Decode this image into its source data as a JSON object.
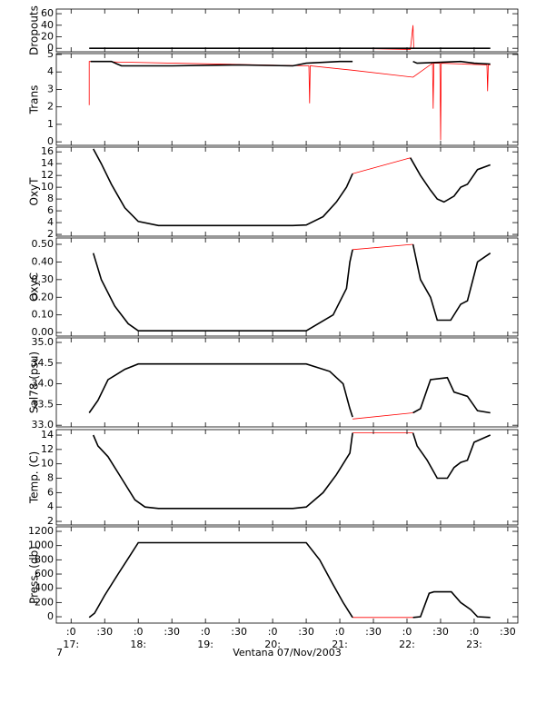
{
  "chart_data": [
    {
      "type": "line",
      "ylabel": "Dropouts",
      "ylim": [
        -6,
        68
      ],
      "yticks": [
        0,
        20,
        40,
        60
      ],
      "xlim": [
        16.78,
        23.65
      ],
      "series": [
        {
          "color": "#ff0000",
          "x": [
            21.19,
            22.05,
            22.09,
            22.1
          ],
          "values": [
            0,
            -2,
            40,
            0
          ]
        },
        {
          "color": "#000000",
          "x": [
            17.27,
            18.0,
            19.0,
            20.0,
            21.19,
            22.1,
            22.7,
            23.24
          ],
          "values": [
            0,
            0,
            0,
            0,
            0,
            0,
            0,
            0
          ]
        }
      ]
    },
    {
      "type": "line",
      "ylabel": "Trans",
      "ylim": [
        -0.2,
        5.05
      ],
      "yticks": [
        0,
        1,
        2,
        3,
        4,
        5
      ],
      "xlim": [
        16.78,
        23.65
      ],
      "series": [
        {
          "color": "#ff0000",
          "x": [
            17.27,
            17.27,
            17.29,
            20.54,
            20.55,
            20.56,
            21.19,
            22.09,
            22.38,
            22.39,
            22.4,
            22.49,
            22.5,
            22.51,
            23.19,
            23.2,
            23.21,
            23.24
          ],
          "values": [
            2.1,
            4.6,
            4.6,
            4.35,
            2.2,
            4.35,
            4.1,
            3.7,
            4.5,
            1.9,
            4.5,
            4.5,
            0.1,
            4.5,
            4.4,
            2.9,
            4.4,
            4.4
          ]
        },
        {
          "color": "#000000",
          "x": [
            17.29,
            17.6,
            17.75,
            18.5,
            19.5,
            20.3,
            20.5,
            21.0,
            21.19,
            null,
            22.09,
            22.15,
            22.5,
            22.8,
            23.0,
            23.24
          ],
          "values": [
            4.6,
            4.6,
            4.35,
            4.35,
            4.4,
            4.35,
            4.5,
            4.6,
            4.6,
            null,
            4.6,
            4.5,
            4.55,
            4.6,
            4.5,
            4.45
          ]
        }
      ]
    },
    {
      "type": "line",
      "ylabel": "OxyT",
      "ylim": [
        1.7,
        16.8
      ],
      "yticks": [
        2,
        4,
        6,
        8,
        10,
        12,
        14,
        16
      ],
      "xlim": [
        16.78,
        23.65
      ],
      "series": [
        {
          "color": "#ff0000",
          "x": [
            21.19,
            22.05
          ],
          "values": [
            12.3,
            15
          ]
        },
        {
          "color": "#000000",
          "x": [
            17.33,
            17.45,
            17.6,
            17.8,
            18.0,
            18.3,
            20.3,
            20.5,
            20.75,
            20.95,
            21.1,
            21.19,
            null,
            22.05,
            22.2,
            22.35,
            22.45,
            22.55,
            22.7,
            22.8,
            22.9,
            23.05,
            23.24
          ],
          "values": [
            16.5,
            14,
            10.5,
            6.5,
            4.2,
            3.5,
            3.5,
            3.6,
            5,
            7.5,
            10,
            12.3,
            null,
            15,
            12,
            9.5,
            8,
            7.5,
            8.5,
            10,
            10.5,
            13,
            13.8
          ]
        }
      ]
    },
    {
      "type": "line",
      "ylabel": "OxyC",
      "ylim": [
        -0.02,
        0.536
      ],
      "yticks": [
        {
          "value": 0,
          "label": "0.00"
        },
        {
          "value": 0.1,
          "label": "0.10"
        },
        {
          "value": 0.2,
          "label": "0.20"
        },
        {
          "value": 0.3,
          "label": "0.30"
        },
        {
          "value": 0.4,
          "label": "0.40"
        },
        {
          "value": 0.5,
          "label": "0.50"
        }
      ],
      "xlim": [
        16.78,
        23.65
      ],
      "series": [
        {
          "color": "#ff0000",
          "x": [
            21.19,
            22.09
          ],
          "values": [
            0.47,
            0.5
          ]
        },
        {
          "color": "#000000",
          "x": [
            17.33,
            17.45,
            17.65,
            17.85,
            18.0,
            20.5,
            20.9,
            21.1,
            21.15,
            21.19,
            null,
            22.09,
            22.2,
            22.35,
            22.45,
            22.65,
            22.8,
            22.9,
            23.05,
            23.24
          ],
          "values": [
            0.45,
            0.3,
            0.15,
            0.05,
            0.01,
            0.01,
            0.1,
            0.25,
            0.4,
            0.47,
            null,
            0.5,
            0.3,
            0.2,
            0.07,
            0.07,
            0.16,
            0.18,
            0.4,
            0.45
          ]
        }
      ]
    },
    {
      "type": "line",
      "ylabel": "Sal78 (psu)",
      "ylim": [
        32.96,
        35.11
      ],
      "yticks": [
        {
          "value": 33,
          "label": "33.0"
        },
        33.5,
        {
          "value": 34,
          "label": "34.0"
        },
        34.5,
        {
          "value": 35,
          "label": "35.0"
        }
      ],
      "xlim": [
        16.78,
        23.65
      ],
      "series": [
        {
          "color": "#ff0000",
          "x": [
            21.19,
            22.09
          ],
          "values": [
            33.15,
            33.3
          ]
        },
        {
          "color": "#000000",
          "x": [
            17.27,
            17.4,
            17.55,
            17.8,
            18.0,
            20.5,
            20.85,
            21.05,
            21.15,
            21.19,
            null,
            22.09,
            22.2,
            22.35,
            22.6,
            22.7,
            22.9,
            23.05,
            23.24
          ],
          "values": [
            33.3,
            33.6,
            34.1,
            34.35,
            34.48,
            34.48,
            34.3,
            34.0,
            33.4,
            33.2,
            null,
            33.3,
            33.4,
            34.1,
            34.15,
            33.8,
            33.7,
            33.35,
            33.3
          ]
        }
      ]
    },
    {
      "type": "line",
      "ylabel": "Temp. (C)",
      "ylim": [
        1.5,
        14.76
      ],
      "yticks": [
        2,
        4,
        6,
        8,
        10,
        12,
        14
      ],
      "xlim": [
        16.78,
        23.65
      ],
      "series": [
        {
          "color": "#ff0000",
          "x": [
            21.19,
            22.09
          ],
          "values": [
            14.3,
            14.3
          ]
        },
        {
          "color": "#000000",
          "x": [
            17.33,
            17.4,
            17.55,
            17.75,
            17.95,
            18.1,
            18.3,
            20.3,
            20.5,
            20.75,
            20.95,
            21.15,
            21.19,
            null,
            22.09,
            22.15,
            22.3,
            22.45,
            22.6,
            22.7,
            22.8,
            22.9,
            23.0,
            23.24
          ],
          "values": [
            14,
            12.5,
            11,
            8,
            5,
            4,
            3.8,
            3.8,
            4,
            6,
            8.5,
            11.5,
            14.3,
            null,
            14.3,
            12.5,
            10.5,
            8,
            8,
            9.5,
            10.2,
            10.5,
            13,
            14
          ]
        }
      ]
    },
    {
      "type": "line",
      "ylabel": "Press. (db)",
      "ylim": [
        -89,
        1264
      ],
      "yticks": [
        0,
        200,
        400,
        600,
        800,
        1000,
        1200
      ],
      "xlim": [
        16.78,
        23.65
      ],
      "xticks": [
        {
          "value": 17,
          "label": ":0"
        },
        {
          "value": 17.5,
          "label": ":30"
        },
        {
          "value": 18,
          "label": ":0"
        },
        {
          "value": 18.5,
          "label": ":30"
        },
        {
          "value": 19,
          "label": ":0"
        },
        {
          "value": 19.5,
          "label": ":30"
        },
        {
          "value": 20,
          "label": ":0"
        },
        {
          "value": 20.5,
          "label": ":30"
        },
        {
          "value": 21,
          "label": ":0"
        },
        {
          "value": 21.5,
          "label": ":30"
        },
        {
          "value": 22,
          "label": ":0"
        },
        {
          "value": 22.5,
          "label": ":30"
        },
        {
          "value": 23,
          "label": ":0"
        },
        {
          "value": 23.5,
          "label": ":30"
        }
      ],
      "hour_labels": [
        {
          "value": 17,
          "label": "17:"
        },
        {
          "value": 18,
          "label": "18:"
        },
        {
          "value": 19,
          "label": "19:"
        },
        {
          "value": 20,
          "label": "20:"
        },
        {
          "value": 21,
          "label": "21:"
        },
        {
          "value": 22,
          "label": "22:"
        },
        {
          "value": 23,
          "label": "23:"
        }
      ],
      "xlabel": "Ventana 07/Nov/2003",
      "annotation": "7",
      "series": [
        {
          "color": "#ff0000",
          "x": [
            21.19,
            22.09
          ],
          "values": [
            -10,
            -10
          ]
        },
        {
          "color": "#000000",
          "x": [
            17.27,
            17.35,
            17.5,
            17.7,
            17.85,
            18.0,
            20.5,
            20.7,
            20.9,
            21.05,
            21.19,
            null,
            22.09,
            22.2,
            22.33,
            22.4,
            22.66,
            22.8,
            22.95,
            23.05,
            23.24
          ],
          "values": [
            -10,
            50,
            300,
            600,
            820,
            1040,
            1040,
            800,
            450,
            200,
            -10,
            null,
            -10,
            0,
            330,
            350,
            350,
            200,
            100,
            0,
            -10
          ]
        }
      ]
    }
  ]
}
